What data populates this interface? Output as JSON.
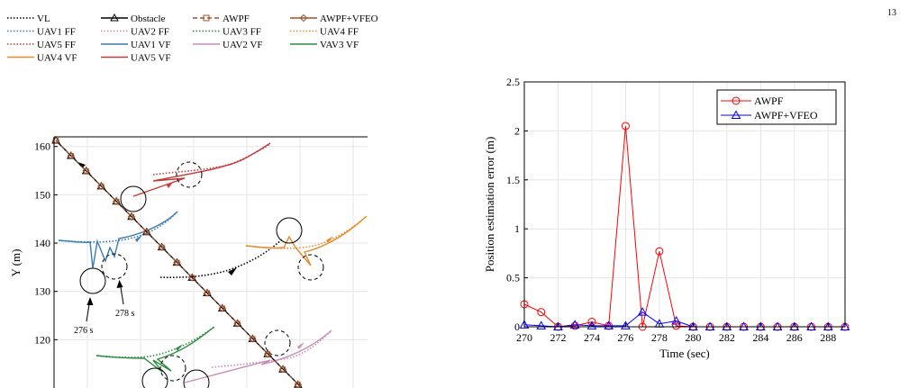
{
  "page_number": "13",
  "chart_data": [
    {
      "type": "line",
      "title": "",
      "xlabel": "",
      "ylabel": "Y (m)",
      "ylim": [
        110,
        162
      ],
      "yticks": [
        "160",
        "150",
        "140",
        "130",
        "120"
      ],
      "grid": true,
      "legend_position": "top",
      "legend": [
        {
          "label": "VL",
          "color": "#000000",
          "style": "dotted",
          "marker": ""
        },
        {
          "label": "Obstacle",
          "color": "#000000",
          "style": "solid",
          "marker": "triangle"
        },
        {
          "label": "AWPF",
          "color": "#a0522d",
          "style": "dashed",
          "marker": "square"
        },
        {
          "label": "AWPF+VFEO",
          "color": "#a0522d",
          "style": "solid",
          "marker": "diamond"
        },
        {
          "label": "UAV1 FF",
          "color": "#3a7bb0",
          "style": "dotted",
          "marker": ""
        },
        {
          "label": "UAV2 FF",
          "color": "#c98bb8",
          "style": "dotted",
          "marker": ""
        },
        {
          "label": "UAV3 FF",
          "color": "#2e8b3e",
          "style": "dotted",
          "marker": ""
        },
        {
          "label": "UAV4 FF",
          "color": "#e8892c",
          "style": "dotted",
          "marker": ""
        },
        {
          "label": "UAV5 FF",
          "color": "#c23b3b",
          "style": "dotted",
          "marker": ""
        },
        {
          "label": "UAV1 VF",
          "color": "#3a7bb0",
          "style": "solid",
          "marker": ""
        },
        {
          "label": "UAV2 VF",
          "color": "#c98bb8",
          "style": "solid",
          "marker": ""
        },
        {
          "label": "VAV3 VF",
          "color": "#2e8b3e",
          "style": "solid",
          "marker": ""
        },
        {
          "label": "UAV4 VF",
          "color": "#e8892c",
          "style": "solid",
          "marker": ""
        },
        {
          "label": "UAV5 VF",
          "color": "#c23b3b",
          "style": "solid",
          "marker": ""
        }
      ],
      "annotations": [
        "276 s",
        "278 s"
      ]
    },
    {
      "type": "line",
      "title": "",
      "xlabel": "Time (sec)",
      "ylabel": "Position estimation error (m)",
      "xlim": [
        270,
        289
      ],
      "ylim": [
        0,
        2.5
      ],
      "xticks": [
        270,
        272,
        274,
        276,
        278,
        280,
        282,
        284,
        286,
        288
      ],
      "yticks": [
        0,
        0.5,
        1,
        1.5,
        2,
        2.5
      ],
      "grid": true,
      "legend_position": "top-right",
      "series": [
        {
          "name": "AWPF",
          "color": "#ff0000",
          "marker": "circle",
          "x": [
            270,
            271,
            272,
            273,
            274,
            275,
            276,
            277,
            278,
            279,
            280,
            281,
            282,
            283,
            284,
            285,
            286,
            287,
            288,
            289
          ],
          "y": [
            0.23,
            0.15,
            0,
            0.01,
            0.05,
            0.01,
            2.05,
            0,
            0.77,
            0.01,
            0,
            0,
            0,
            0,
            0,
            0,
            0,
            0,
            0,
            0
          ]
        },
        {
          "name": "AWPF+VFEO",
          "color": "#0000ff",
          "marker": "triangle",
          "x": [
            270,
            271,
            272,
            273,
            274,
            275,
            276,
            277,
            278,
            279,
            280,
            281,
            282,
            283,
            284,
            285,
            286,
            287,
            288,
            289
          ],
          "y": [
            0.02,
            0.01,
            0,
            0.02,
            0.01,
            0.01,
            0.01,
            0.15,
            0.03,
            0.06,
            0,
            0,
            0,
            0,
            0,
            0,
            0,
            0,
            0,
            0
          ]
        }
      ]
    }
  ]
}
